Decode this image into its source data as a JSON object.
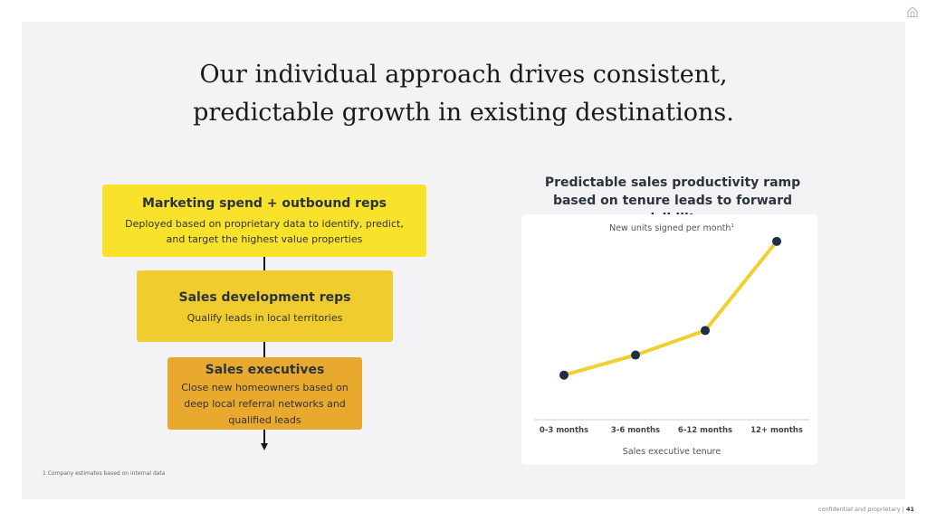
{
  "title": {
    "line1": "Our individual approach drives consistent,",
    "line2": "predictable growth in existing destinations."
  },
  "funnel": [
    {
      "heading": "Marketing spend + outbound reps",
      "lines": [
        "Deployed based on proprietary data to identify, predict,",
        "and target the highest value properties"
      ]
    },
    {
      "heading": "Sales development reps",
      "lines": [
        "Qualify leads in local territories"
      ]
    },
    {
      "heading": "Sales executives",
      "lines": [
        "Close new homeowners based on",
        "deep local referral networks and",
        "qualified leads"
      ]
    }
  ],
  "footnote": "1 Company estimates based on internal data",
  "footer": {
    "text": "confidential and proprietary",
    "separator": "|",
    "page": "41"
  },
  "colors": {
    "accent_line": "#f1cf30",
    "point": "#1e2f45",
    "box1": "#f8e22b",
    "box2": "#f1cc2f",
    "box3": "#e8a92e"
  },
  "icons": {
    "top_right": "home-icon"
  },
  "chart_data": {
    "type": "line",
    "title_lines": [
      "Predictable sales productivity ramp",
      "based on tenure leads to forward visibility"
    ],
    "series_label": "New units signed per month",
    "series_label_sup": "1",
    "xlabel": "Sales executive tenure",
    "ylabel": "",
    "categories": [
      "0-3 months",
      "3-6 months",
      "6-12 months",
      "12+ months"
    ],
    "values": [
      1.0,
      1.45,
      2.0,
      4.0
    ],
    "ylim": [
      0,
      4.2
    ],
    "grid": false,
    "y_axis_ticks_shown": false
  }
}
